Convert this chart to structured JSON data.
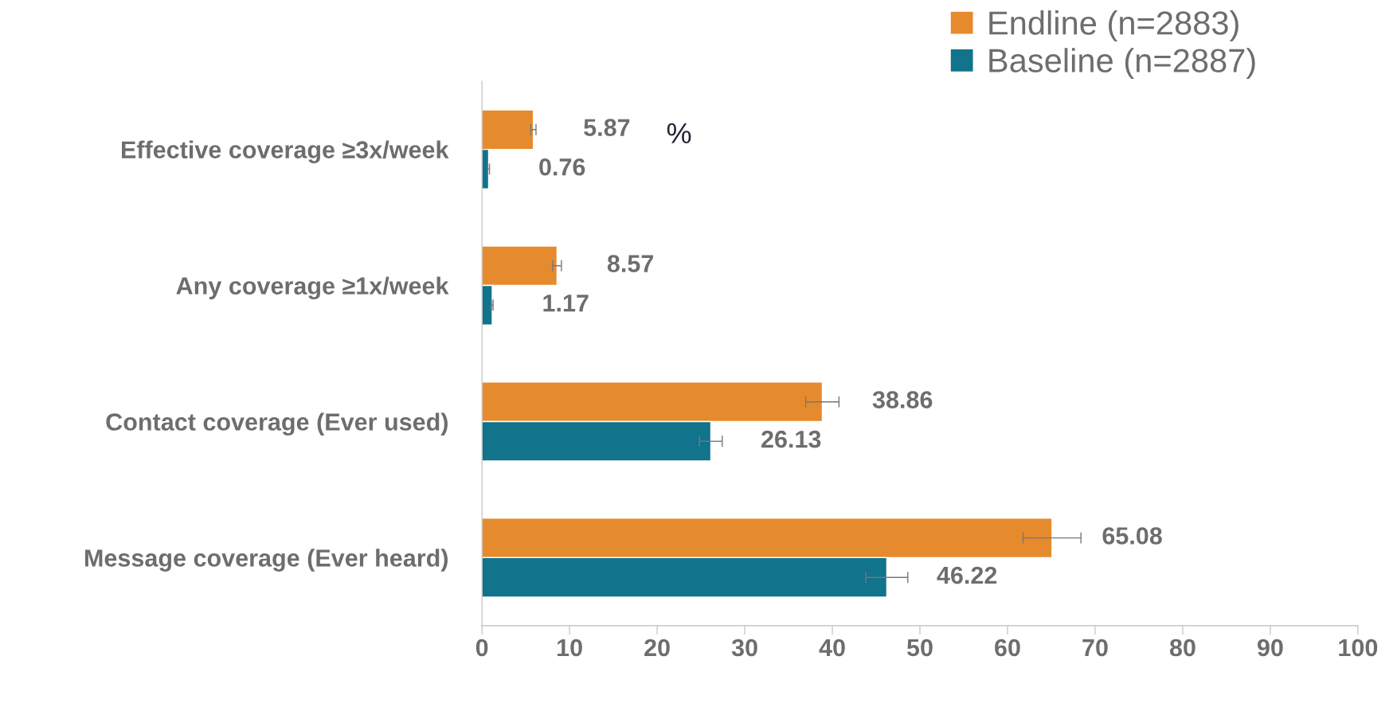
{
  "chart_data": {
    "type": "bar",
    "orientation": "horizontal",
    "categories": [
      "Effective coverage ≥3x/week",
      "Any coverage ≥1x/week",
      "Contact coverage (Ever used)",
      "Message coverage (Ever heard)"
    ],
    "series": [
      {
        "name": "Endline (n=2883)",
        "color": "#e68a2e",
        "values": [
          5.87,
          8.57,
          38.86,
          65.08
        ],
        "errors": [
          0.3,
          0.5,
          1.9,
          3.3
        ]
      },
      {
        "name": "Baseline (n=2887)",
        "color": "#11738c",
        "values": [
          0.76,
          1.17,
          26.13,
          46.22
        ],
        "errors": [
          0.1,
          0.1,
          1.3,
          2.4
        ]
      }
    ],
    "xlim": [
      0,
      100
    ],
    "xticks": [
      0,
      10,
      20,
      30,
      40,
      50,
      60,
      70,
      80,
      90,
      100
    ],
    "annotations": [
      "%"
    ],
    "data_labels": true,
    "grid": false,
    "legend": "top right"
  }
}
